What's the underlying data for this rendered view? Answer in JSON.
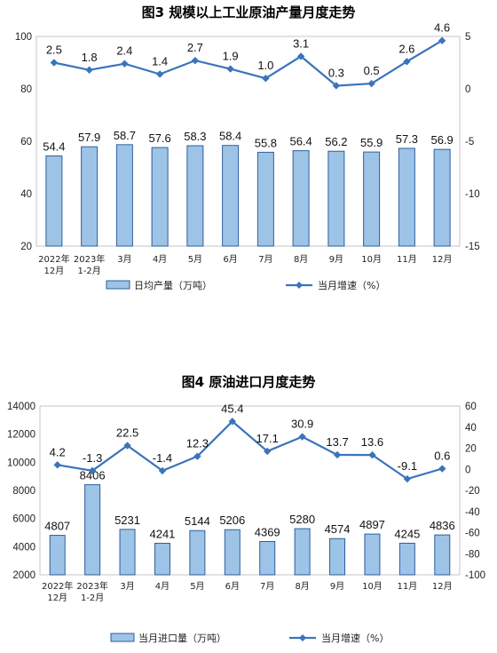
{
  "chart_data": [
    {
      "type": "bar+line",
      "title": "图3  规模以上工业原油产量月度走势",
      "categories": [
        [
          "2022年",
          "12月"
        ],
        [
          "2023年",
          "1-2月"
        ],
        [
          "3月"
        ],
        [
          "4月"
        ],
        [
          "5月"
        ],
        [
          "6月"
        ],
        [
          "7月"
        ],
        [
          "8月"
        ],
        [
          "9月"
        ],
        [
          "10月"
        ],
        [
          "11月"
        ],
        [
          "12月"
        ]
      ],
      "series": [
        {
          "name": "日均产量（万吨）",
          "type": "bar",
          "axis": "left",
          "values": [
            54.4,
            57.9,
            58.7,
            57.6,
            58.3,
            58.4,
            55.8,
            56.4,
            56.2,
            55.9,
            57.3,
            56.9
          ]
        },
        {
          "name": "当月增速（%）",
          "type": "line",
          "axis": "right",
          "values": [
            2.5,
            1.8,
            2.4,
            1.4,
            2.7,
            1.9,
            1.0,
            3.1,
            0.3,
            0.5,
            2.6,
            4.6
          ]
        }
      ],
      "y_left": {
        "min": 20,
        "max": 100,
        "ticks": [
          "20",
          "40",
          "60",
          "80",
          "100"
        ]
      },
      "y_right": {
        "min": -15,
        "max": 5,
        "ticks": [
          "-15",
          "-10",
          "-5",
          "0",
          "5"
        ]
      },
      "legend_position": "bottom",
      "colors": {
        "bar_fill": "#9dc3e6",
        "bar_stroke": "#2e5f9e",
        "line": "#3a74bc"
      }
    },
    {
      "type": "bar+line",
      "title": "图4  原油进口月度走势",
      "categories": [
        [
          "2022年",
          "12月"
        ],
        [
          "2023年",
          "1-2月"
        ],
        [
          "3月"
        ],
        [
          "4月"
        ],
        [
          "5月"
        ],
        [
          "6月"
        ],
        [
          "7月"
        ],
        [
          "8月"
        ],
        [
          "9月"
        ],
        [
          "10月"
        ],
        [
          "11月"
        ],
        [
          "12月"
        ]
      ],
      "series": [
        {
          "name": "当月进口量（万吨）",
          "type": "bar",
          "axis": "left",
          "values": [
            4807,
            8406,
            5231,
            4241,
            5144,
            5206,
            4369,
            5280,
            4574,
            4897,
            4245,
            4836
          ]
        },
        {
          "name": "当月增速（%）",
          "type": "line",
          "axis": "right",
          "values": [
            4.2,
            -1.3,
            22.5,
            -1.4,
            12.3,
            45.4,
            17.1,
            30.9,
            13.7,
            13.6,
            -9.1,
            0.6
          ]
        }
      ],
      "y_left": {
        "min": 2000,
        "max": 14000,
        "ticks": [
          "2000",
          "4000",
          "6000",
          "8000",
          "10000",
          "12000",
          "14000"
        ]
      },
      "y_right": {
        "min": -100,
        "max": 60,
        "ticks": [
          "-100",
          "-80",
          "-60",
          "-40",
          "-20",
          "0",
          "20",
          "40",
          "60"
        ]
      },
      "legend_position": "bottom",
      "colors": {
        "bar_fill": "#9dc3e6",
        "bar_stroke": "#2e5f9e",
        "line": "#3a74bc"
      }
    }
  ]
}
